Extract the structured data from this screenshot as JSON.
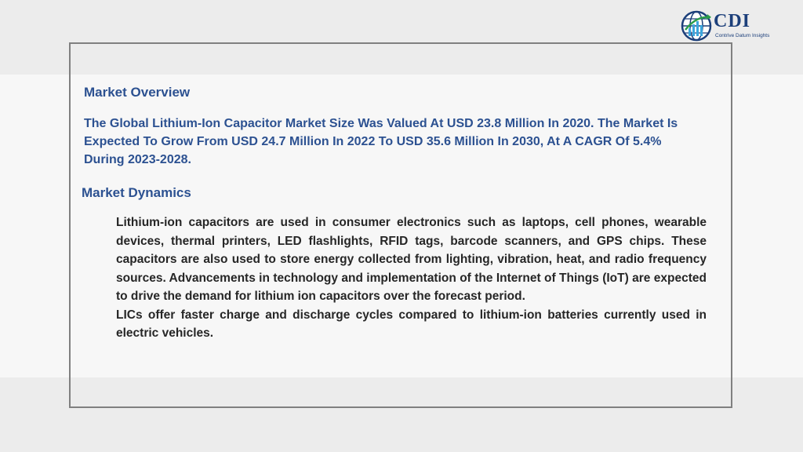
{
  "logo": {
    "brand": "CDI",
    "tagline": "Contrive Datum Insights"
  },
  "overview": {
    "heading": "Market Overview",
    "text": "The Global Lithium-Ion Capacitor Market Size Was Valued At USD 23.8 Million In 2020. The Market Is Expected To Grow From USD 24.7 Million In 2022 To USD 35.6 Million In 2030, At A CAGR Of 5.4% During 2023-2028."
  },
  "dynamics": {
    "heading": "Market Dynamics",
    "paragraphs": [
      "Lithium-ion capacitors are used in consumer electronics such as laptops, cell phones, wearable devices, thermal printers, LED flashlights, RFID tags, barcode scanners, and GPS chips. These capacitors are also used to store energy collected from lighting, vibration, heat, and radio frequency sources. Advancements in technology and implementation of the Internet of Things (IoT) are expected to drive the demand for lithium ion capacitors over the forecast period.",
      "LICs offer faster charge and discharge cycles compared to lithium-ion batteries currently used in electric vehicles."
    ]
  }
}
